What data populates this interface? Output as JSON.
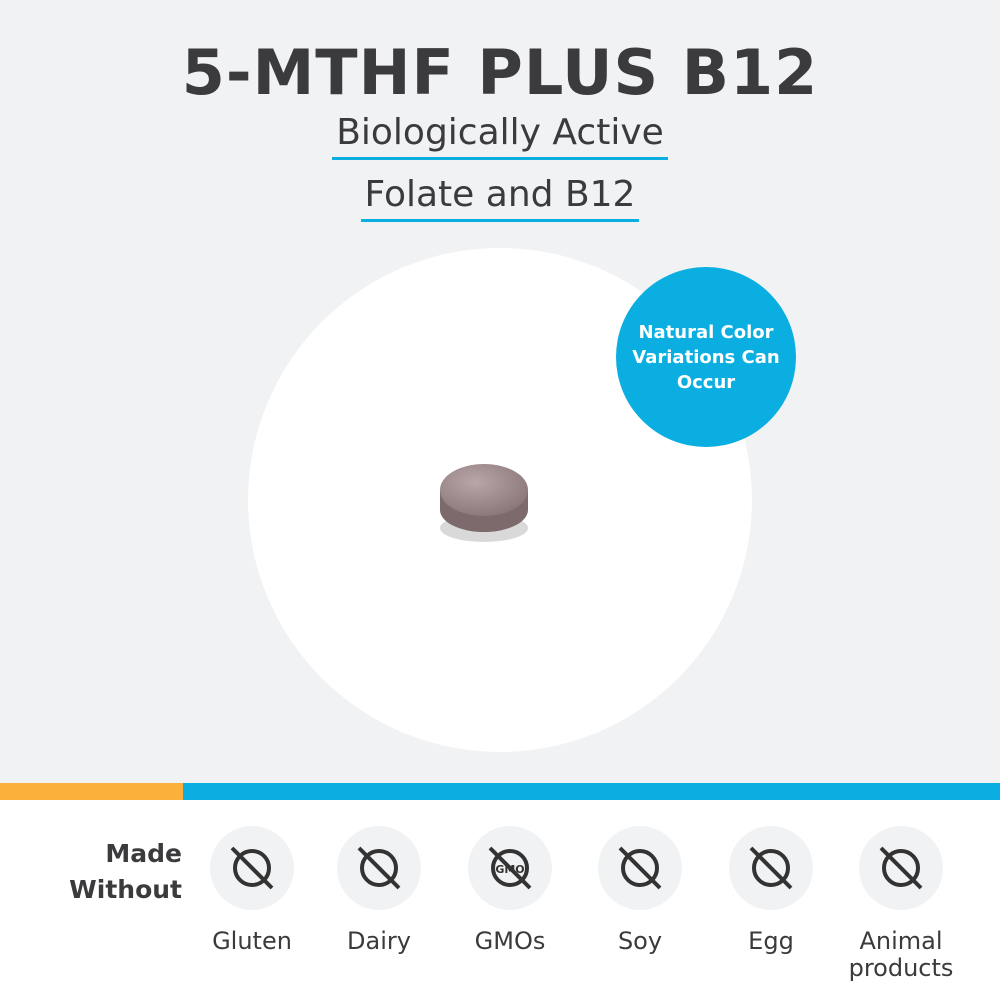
{
  "title": "5-MTHF PLUS B12",
  "subtitle_line1": "Biologically Active",
  "subtitle_line2": "Folate and B12",
  "badge": "Natural Color Variations Can Occur",
  "made_without": {
    "label_line1": "Made",
    "label_line2": "Without",
    "items": [
      {
        "label": "Gluten",
        "icon": "no-gluten-icon"
      },
      {
        "label": "Dairy",
        "icon": "no-dairy-icon"
      },
      {
        "label": "GMOs",
        "icon": "no-gmo-icon"
      },
      {
        "label": "Soy",
        "icon": "no-soy-icon"
      },
      {
        "label": "Egg",
        "icon": "no-egg-icon"
      },
      {
        "label": "Animal products",
        "icon": "no-animal-products-icon"
      }
    ]
  },
  "colors": {
    "accent_blue": "#0aaee0",
    "accent_orange": "#fbb03b",
    "background": "#f1f2f4"
  }
}
